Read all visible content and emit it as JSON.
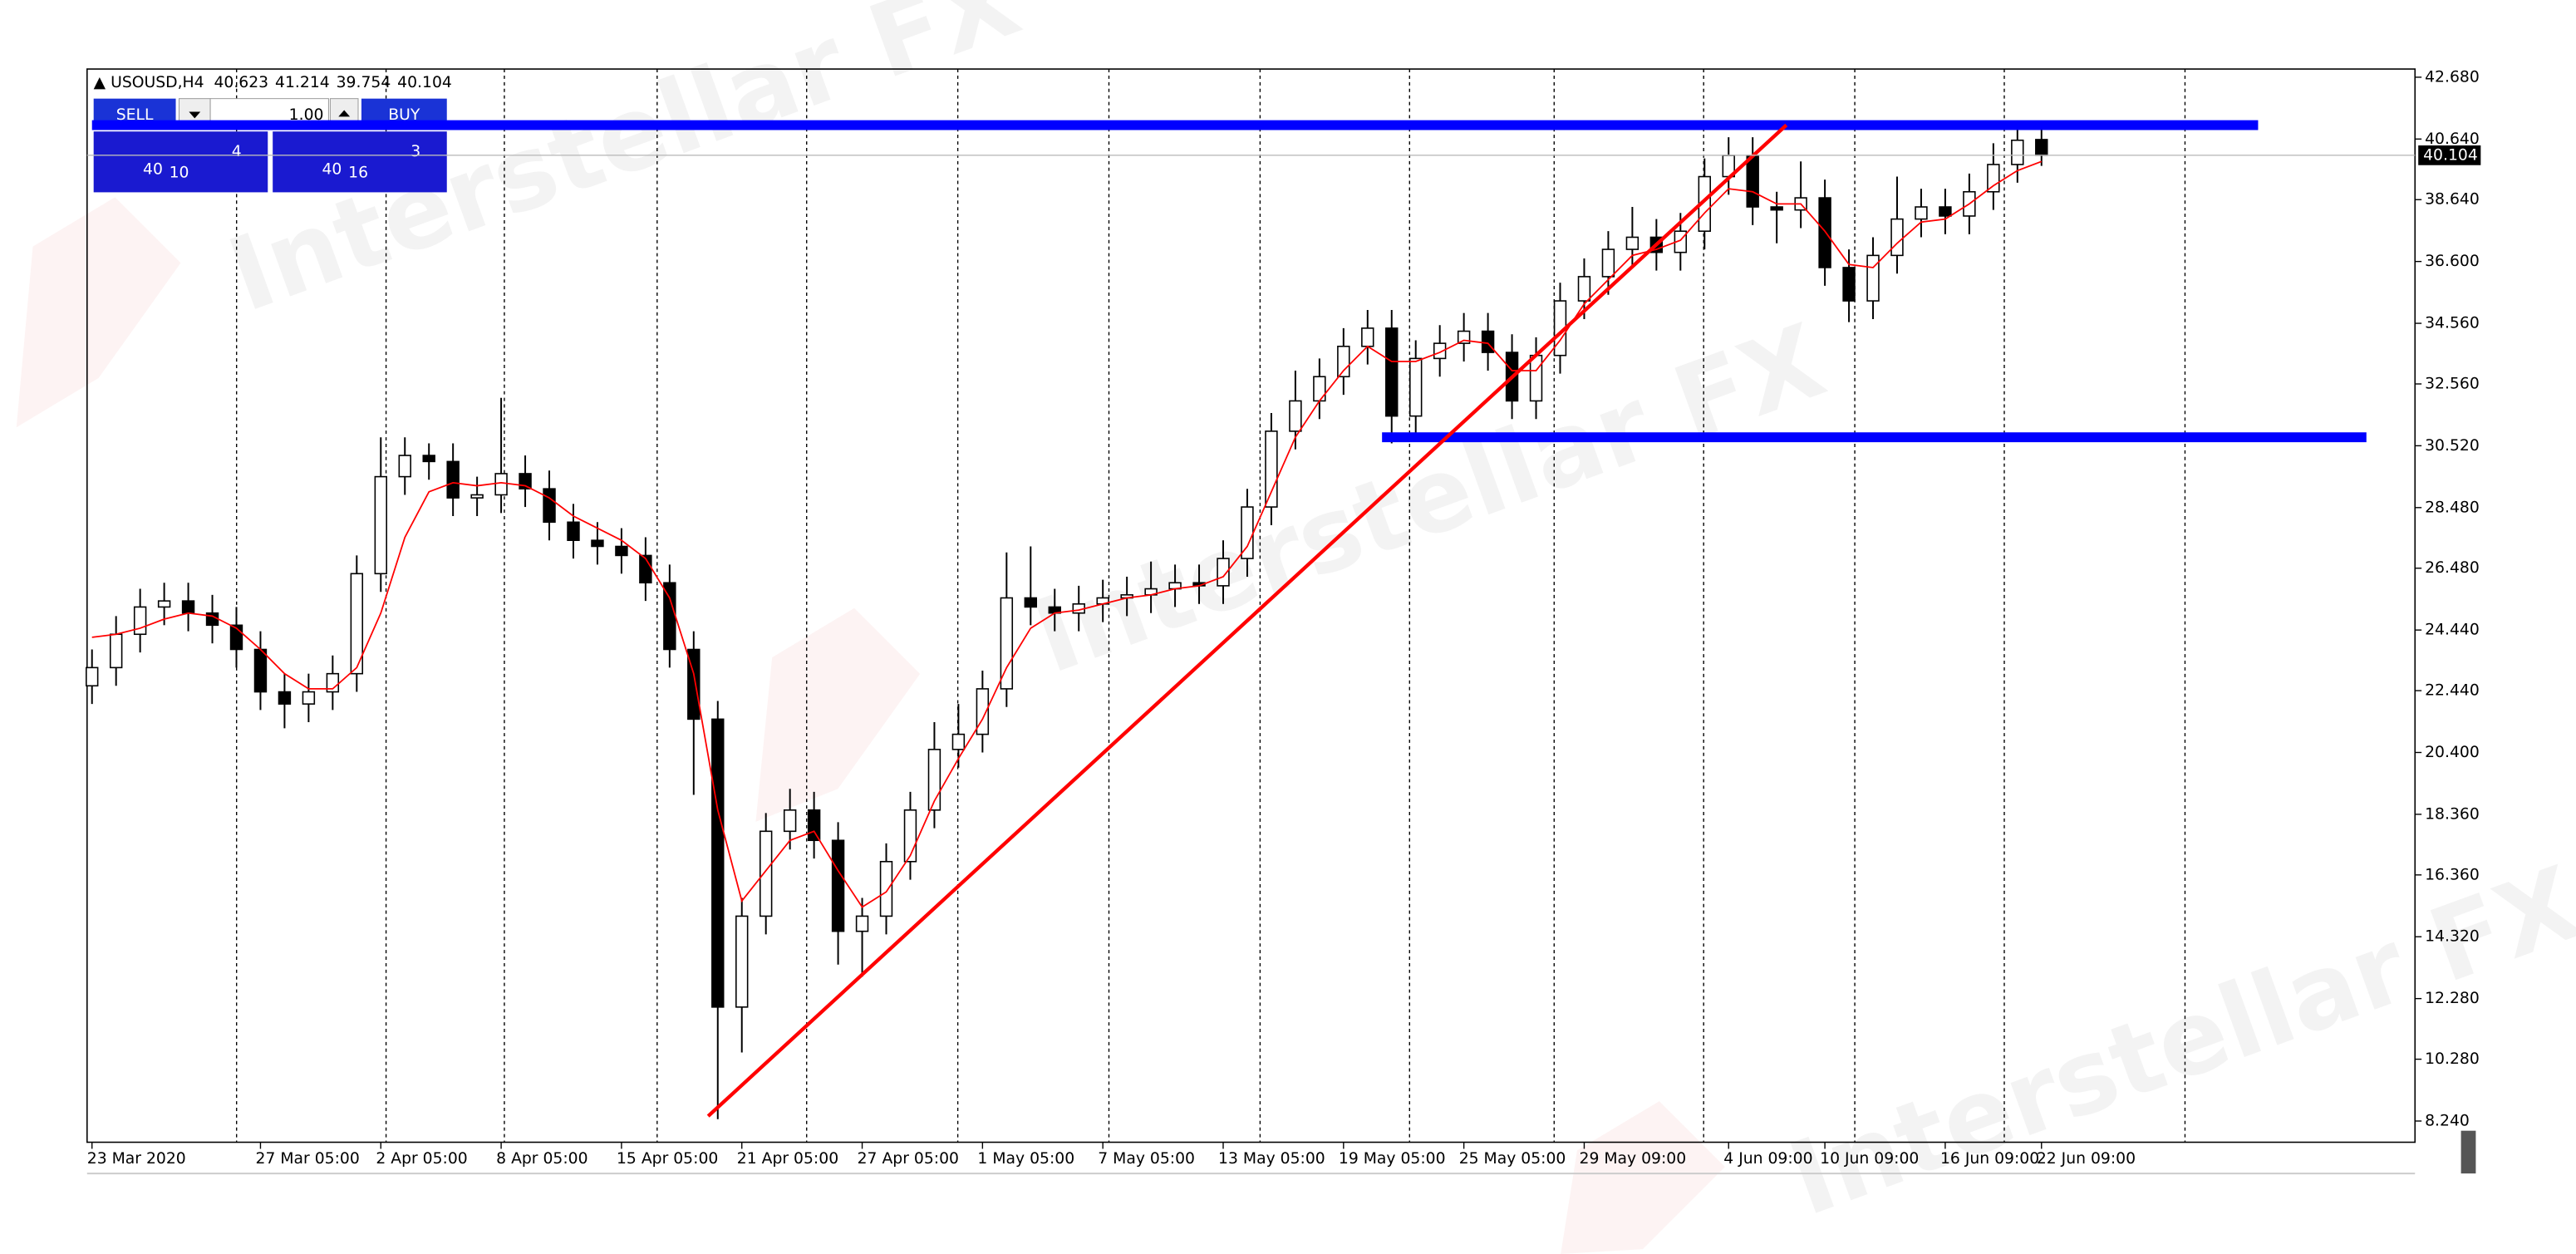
{
  "chart_data": {
    "type": "candlestick",
    "title": "USOUSD,H4",
    "watermark": "Interstellar FX",
    "categories": [
      "23 Mar 2020",
      null,
      null,
      null,
      null,
      null,
      null,
      "27 Mar 05:00",
      null,
      null,
      null,
      null,
      "2 Apr 05:00",
      null,
      null,
      null,
      null,
      "8 Apr 05:00",
      null,
      null,
      null,
      null,
      "15 Apr 05:00",
      null,
      null,
      null,
      null,
      "21 Apr 05:00",
      null,
      null,
      null,
      null,
      "27 Apr 05:00",
      null,
      null,
      null,
      null,
      "1 May 05:00",
      null,
      null,
      null,
      null,
      "7 May 05:00",
      null,
      null,
      null,
      null,
      "13 May 05:00",
      null,
      null,
      null,
      null,
      "19 May 05:00",
      null,
      null,
      null,
      null,
      "25 May 05:00",
      null,
      null,
      null,
      null,
      "29 May 09:00",
      null,
      null,
      null,
      null,
      null,
      "4 Jun 09:00",
      null,
      null,
      null,
      "10 Jun 09:00",
      null,
      null,
      null,
      null,
      "16 Jun 09:00",
      null,
      null,
      null,
      "22 Jun 09:00"
    ],
    "series": [
      {
        "name": "USOUSD",
        "color": "#000000",
        "open": [
          22.6,
          23.2,
          24.3,
          25.2,
          25.4,
          25.0,
          24.6,
          23.8,
          22.4,
          22.0,
          22.4,
          23.0,
          26.3,
          29.5,
          30.2,
          30.0,
          28.8,
          28.9,
          29.6,
          29.1,
          28.0,
          27.4,
          27.2,
          26.9,
          26.0,
          23.8,
          21.5,
          12.0,
          15.0,
          17.8,
          18.5,
          17.5,
          14.5,
          15.0,
          16.8,
          18.5,
          20.5,
          21.0,
          22.5,
          25.5,
          25.2,
          25.0,
          25.3,
          25.5,
          25.6,
          25.8,
          26.0,
          25.9,
          26.8,
          28.5,
          31.0,
          32.0,
          32.8,
          33.8,
          34.4,
          31.5,
          33.4,
          33.9,
          34.3,
          33.6,
          32.0,
          33.5,
          35.3,
          36.1,
          37.0,
          37.4,
          36.9,
          37.6,
          39.4,
          40.1,
          38.4,
          38.3,
          38.7,
          36.4,
          35.3,
          36.8,
          38.0,
          38.4,
          38.1,
          38.9,
          39.8,
          40.623
        ],
        "high": [
          23.8,
          24.9,
          25.8,
          26.0,
          26.0,
          25.6,
          25.2,
          24.4,
          23.0,
          23.0,
          23.6,
          26.9,
          30.8,
          30.8,
          30.6,
          30.6,
          29.5,
          32.1,
          30.2,
          29.7,
          28.6,
          28.0,
          27.8,
          27.5,
          26.6,
          24.4,
          22.1,
          15.6,
          18.4,
          19.2,
          19.1,
          18.1,
          15.6,
          17.4,
          19.1,
          21.4,
          22.0,
          23.1,
          27.0,
          27.2,
          25.8,
          25.9,
          26.1,
          26.2,
          26.7,
          26.6,
          26.6,
          27.4,
          29.1,
          31.6,
          33.0,
          33.4,
          34.4,
          35.0,
          35.0,
          34.0,
          34.5,
          34.9,
          34.9,
          34.2,
          34.1,
          35.9,
          36.7,
          37.6,
          38.4,
          38.0,
          38.2,
          40.0,
          40.7,
          40.7,
          38.9,
          39.9,
          39.3,
          37.0,
          37.4,
          39.4,
          39.0,
          39.0,
          39.5,
          40.5,
          41.0,
          41.214
        ],
        "low": [
          22.0,
          22.6,
          23.7,
          24.6,
          24.4,
          24.0,
          23.2,
          21.8,
          21.2,
          21.4,
          21.8,
          22.4,
          25.7,
          28.9,
          29.4,
          28.2,
          28.2,
          28.3,
          28.5,
          27.4,
          26.8,
          26.6,
          26.3,
          25.4,
          23.2,
          19.0,
          8.3,
          10.5,
          14.4,
          17.2,
          16.9,
          13.4,
          13.0,
          14.4,
          16.2,
          17.9,
          19.9,
          20.4,
          21.9,
          24.6,
          24.4,
          24.4,
          24.7,
          24.9,
          25.0,
          25.2,
          25.3,
          25.3,
          26.2,
          27.9,
          30.4,
          31.4,
          32.2,
          33.2,
          30.6,
          30.9,
          32.8,
          33.3,
          33.0,
          31.4,
          31.4,
          32.9,
          34.7,
          35.5,
          36.4,
          36.3,
          36.3,
          37.0,
          38.8,
          37.8,
          37.2,
          37.7,
          35.8,
          34.6,
          34.7,
          36.2,
          37.4,
          37.5,
          37.5,
          38.3,
          39.2,
          39.754
        ],
        "close": [
          23.2,
          24.3,
          25.2,
          25.4,
          25.0,
          24.6,
          23.8,
          22.4,
          22.0,
          22.4,
          23.0,
          26.3,
          29.5,
          30.2,
          30.0,
          28.8,
          28.9,
          29.6,
          29.1,
          28.0,
          27.4,
          27.2,
          26.9,
          26.0,
          23.8,
          21.5,
          12.0,
          15.0,
          17.8,
          18.5,
          17.5,
          14.5,
          15.0,
          16.8,
          18.5,
          20.5,
          21.0,
          22.5,
          25.5,
          25.2,
          25.0,
          25.3,
          25.5,
          25.6,
          25.8,
          26.0,
          25.9,
          26.8,
          28.5,
          31.0,
          32.0,
          32.8,
          33.8,
          34.4,
          31.5,
          33.4,
          33.9,
          34.3,
          33.6,
          32.0,
          33.5,
          35.3,
          36.1,
          37.0,
          37.4,
          36.9,
          37.6,
          39.4,
          40.1,
          38.4,
          38.3,
          38.7,
          36.4,
          35.3,
          36.8,
          38.0,
          38.4,
          38.1,
          38.9,
          39.8,
          40.6,
          40.104
        ]
      },
      {
        "type": "line",
        "color": "#ff0000",
        "values": [
          24.2,
          24.3,
          24.5,
          24.8,
          25.0,
          24.9,
          24.5,
          23.8,
          23.0,
          22.5,
          22.5,
          23.2,
          25.0,
          27.5,
          29.0,
          29.3,
          29.2,
          29.3,
          29.2,
          28.8,
          28.2,
          27.8,
          27.4,
          26.8,
          25.5,
          23.0,
          18.5,
          15.5,
          16.5,
          17.5,
          17.8,
          16.5,
          15.3,
          15.8,
          17.0,
          18.8,
          20.2,
          21.5,
          23.2,
          24.5,
          25.0,
          25.1,
          25.3,
          25.5,
          25.6,
          25.8,
          25.9,
          26.2,
          27.2,
          29.0,
          30.8,
          32.0,
          33.0,
          33.8,
          33.3,
          33.3,
          33.6,
          34.0,
          33.9,
          33.0,
          33.0,
          34.0,
          35.2,
          36.0,
          36.8,
          37.0,
          37.3,
          38.2,
          39.0,
          38.9,
          38.5,
          38.5,
          37.6,
          36.5,
          36.4,
          37.2,
          37.9,
          38.0,
          38.5,
          39.1,
          39.6,
          39.9
        ]
      }
    ],
    "hlines": [
      {
        "value": 41.1,
        "from": 0,
        "to": 90,
        "color": "#0000ff"
      },
      {
        "value": 30.8,
        "from": 53.6,
        "to": 94.5,
        "color": "#0000ff"
      }
    ],
    "trendline": {
      "from": [
        25.6,
        8.4
      ],
      "to": [
        70.4,
        41.1
      ],
      "color": "#ff0000"
    },
    "ylim": [
      7.54,
      42.95
    ],
    "yticks": [
      {
        "value": 42.68,
        "label": "42.680"
      },
      {
        "value": 40.64,
        "label": "40.640"
      },
      {
        "value": 38.64,
        "label": "38.640"
      },
      {
        "value": 36.6,
        "label": "36.600"
      },
      {
        "value": 34.56,
        "label": "34.560"
      },
      {
        "value": 32.56,
        "label": "32.560"
      },
      {
        "value": 30.52,
        "label": "30.520"
      },
      {
        "value": 28.48,
        "label": "28.480"
      },
      {
        "value": 26.48,
        "label": "26.480"
      },
      {
        "value": 24.44,
        "label": "24.440"
      },
      {
        "value": 22.44,
        "label": "22.440"
      },
      {
        "value": 20.4,
        "label": "20.400"
      },
      {
        "value": 18.36,
        "label": "18.360"
      },
      {
        "value": 16.36,
        "label": "16.360"
      },
      {
        "value": 14.32,
        "label": "14.320"
      },
      {
        "value": 12.28,
        "label": "12.280"
      },
      {
        "value": 10.28,
        "label": "10.280"
      },
      {
        "value": 8.24,
        "label": "8.240"
      }
    ],
    "trade_panel": {
      "sell": "SELL",
      "buy": "BUY",
      "lot": "1.00",
      "sell_price": [
        "40",
        "10",
        "4"
      ],
      "buy_price": [
        "40",
        "16",
        "3"
      ]
    }
  }
}
